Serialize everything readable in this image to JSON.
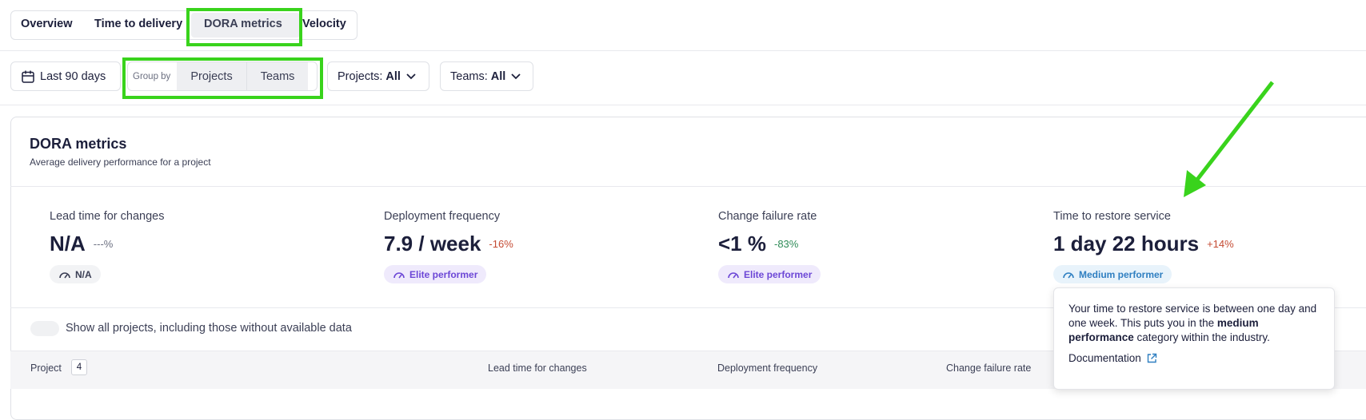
{
  "tabs": [
    "Overview",
    "Time to delivery",
    "DORA metrics",
    "Velocity"
  ],
  "filters": {
    "date_range": "Last 90 days",
    "group_by_label": "Group by",
    "group_by_options": [
      "Projects",
      "Teams"
    ],
    "projects_label": "Projects:",
    "projects_value": "All",
    "teams_label": "Teams:",
    "teams_value": "All"
  },
  "card": {
    "title": "DORA metrics",
    "subtitle": "Average delivery performance for a project"
  },
  "metrics": [
    {
      "label": "Lead time for changes",
      "value": "N/A",
      "change": "---%",
      "badge": "N/A"
    },
    {
      "label": "Deployment frequency",
      "value": "7.9 / week",
      "change": "-16%",
      "badge": "Elite performer"
    },
    {
      "label": "Change failure rate",
      "value": "<1 %",
      "change": "-83%",
      "badge": "Elite performer"
    },
    {
      "label": "Time to restore service",
      "value": "1 day 22 hours",
      "change": "+14%",
      "badge": "Medium performer"
    }
  ],
  "toggle_label": "Show all projects, including those without available data",
  "table": {
    "headers": [
      "Project",
      "Lead time for changes",
      "Deployment frequency",
      "Change failure rate"
    ],
    "project_count": 4
  },
  "tooltip": {
    "text_before": "Your time to restore service is between one day and one week. This puts you in the",
    "text_bold": "medium performance",
    "text_after": "category within the industry.",
    "link": "Documentation"
  }
}
